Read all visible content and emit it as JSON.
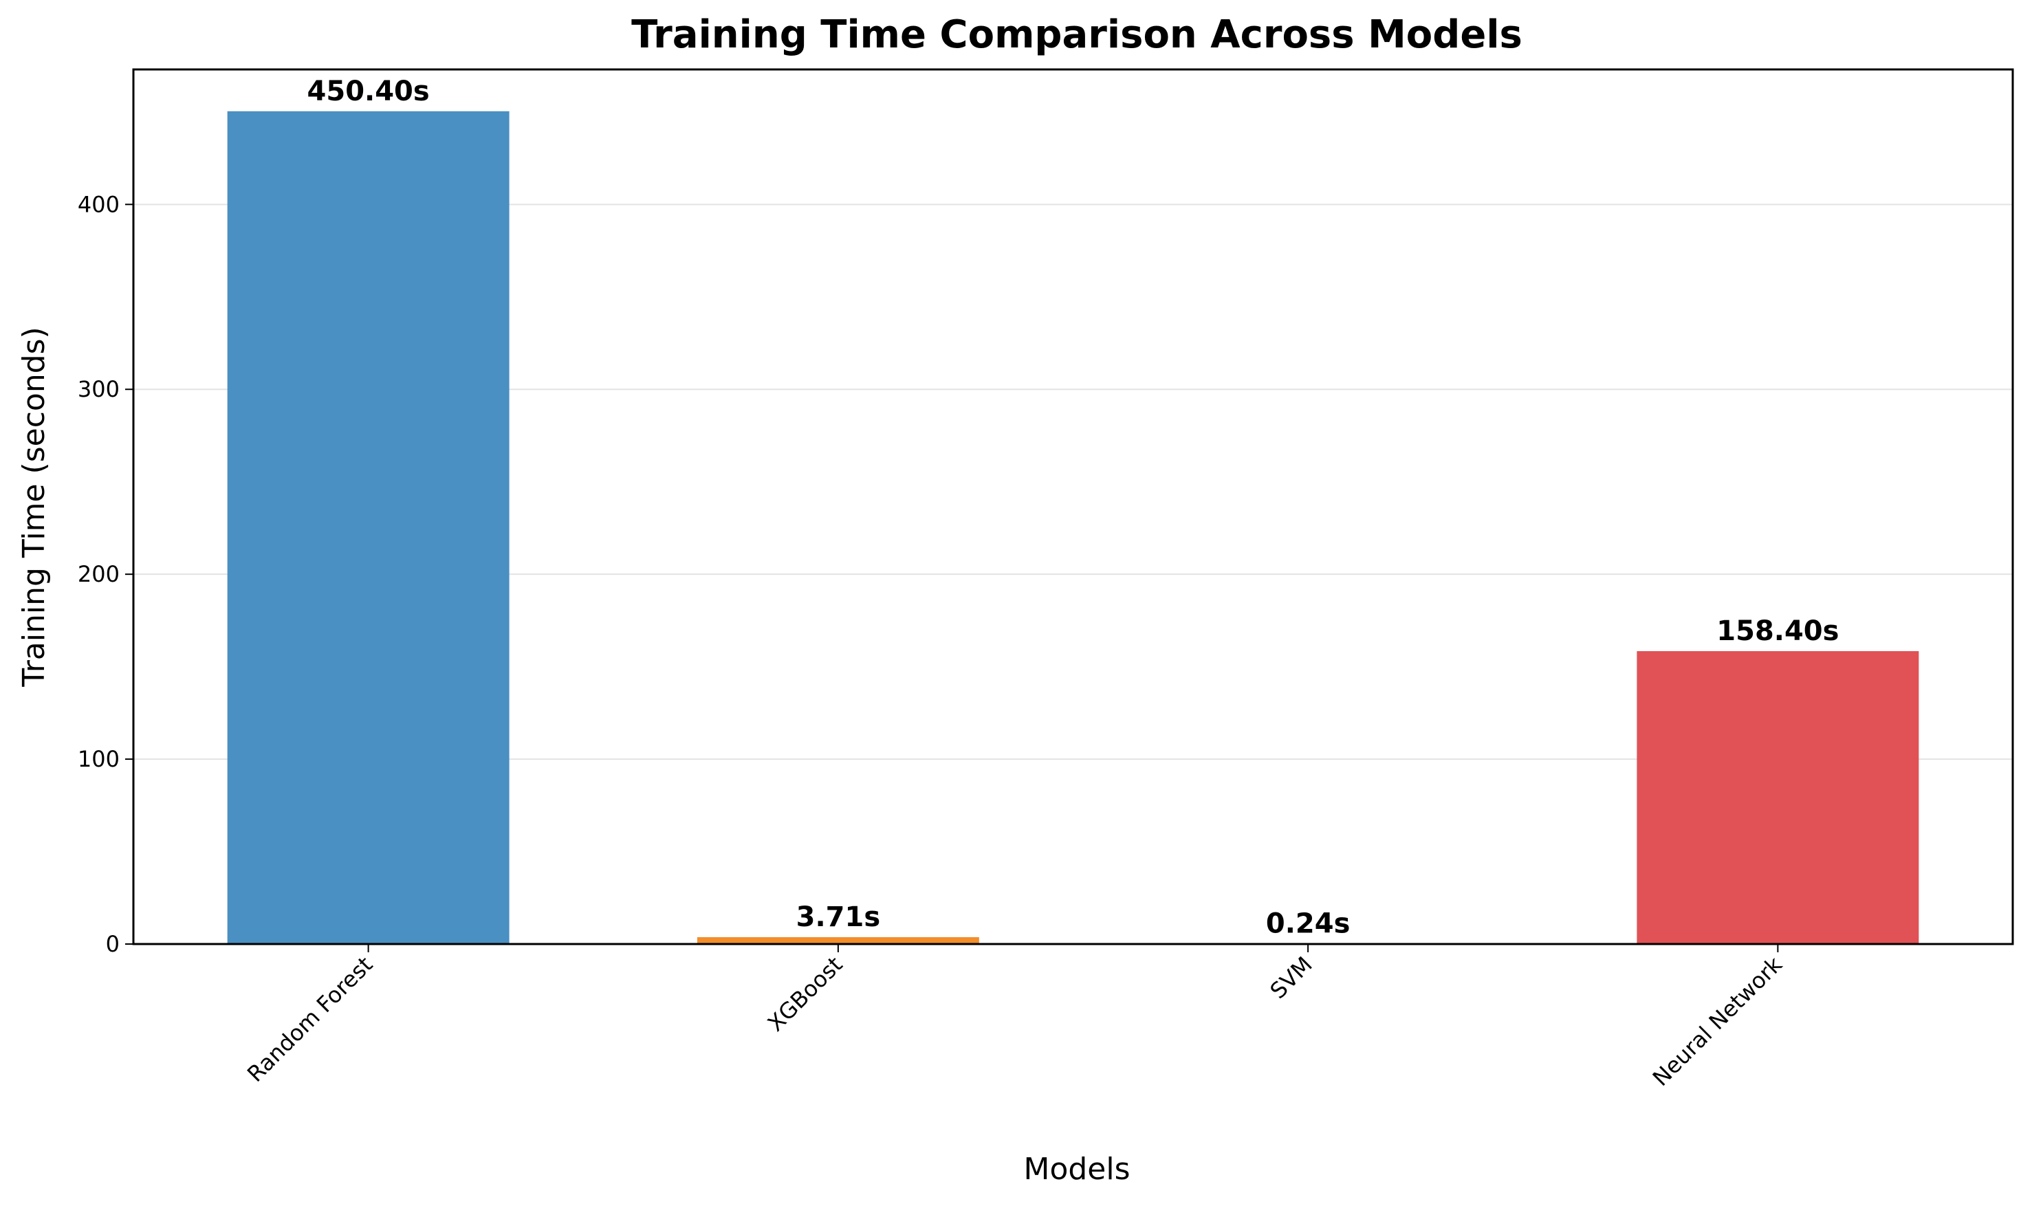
{
  "chart_data": {
    "type": "bar",
    "title": "Training Time Comparison Across Models",
    "xlabel": "Models",
    "ylabel": "Training Time (seconds)",
    "categories": [
      "Random Forest",
      "XGBoost",
      "SVM",
      "Neural Network"
    ],
    "values": [
      450.4,
      3.71,
      0.24,
      158.4
    ],
    "value_labels": [
      "450.40s",
      "3.71s",
      "0.24s",
      "158.40s"
    ],
    "colors": [
      "#4a90c2",
      "#f28e2b",
      "#5aa05a",
      "#e05255"
    ],
    "ylim": [
      0,
      473
    ],
    "yticks": [
      0,
      100,
      200,
      300,
      400
    ],
    "grid": "y",
    "legend": "none"
  }
}
